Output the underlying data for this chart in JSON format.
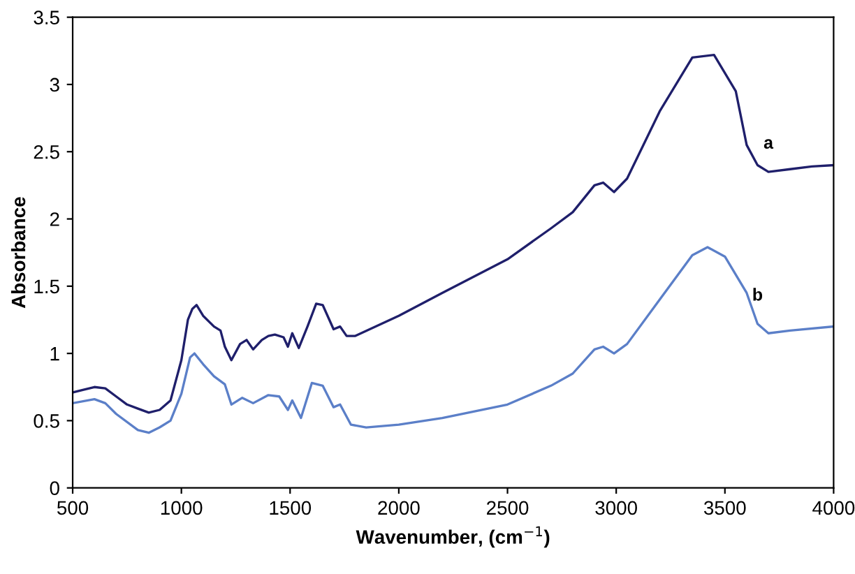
{
  "chart_data": {
    "type": "line",
    "xlabel": "Wavenumber, (cm$^{−1}$)",
    "ylabel": "Absorbance",
    "xlim": [
      500,
      4000
    ],
    "xticks": [
      500,
      1000,
      1500,
      2000,
      2500,
      3000,
      3500,
      4000
    ],
    "ylim": [
      0,
      3.5
    ],
    "yticks": [
      0,
      0.5,
      1,
      1.5,
      2,
      2.5,
      3,
      3.5
    ],
    "grid": false,
    "legend": false,
    "marker": "none",
    "line_style": "solid",
    "series": [
      {
        "name": "a",
        "color": "#1f1f6b",
        "x": [
          500,
          550,
          600,
          650,
          700,
          750,
          800,
          850,
          900,
          950,
          1000,
          1030,
          1050,
          1070,
          1100,
          1150,
          1180,
          1200,
          1230,
          1270,
          1300,
          1330,
          1370,
          1400,
          1430,
          1470,
          1490,
          1510,
          1540,
          1580,
          1620,
          1650,
          1700,
          1730,
          1760,
          1800,
          2000,
          2200,
          2500,
          2700,
          2800,
          2900,
          2940,
          2990,
          3050,
          3200,
          3350,
          3450,
          3550,
          3600,
          3650,
          3700,
          3800,
          3900,
          4000
        ],
        "values": [
          0.71,
          0.73,
          0.75,
          0.74,
          0.68,
          0.62,
          0.59,
          0.56,
          0.58,
          0.65,
          0.95,
          1.25,
          1.33,
          1.36,
          1.28,
          1.2,
          1.17,
          1.05,
          0.95,
          1.07,
          1.1,
          1.03,
          1.1,
          1.13,
          1.14,
          1.12,
          1.05,
          1.15,
          1.04,
          1.2,
          1.37,
          1.36,
          1.18,
          1.2,
          1.13,
          1.13,
          1.28,
          1.45,
          1.7,
          1.93,
          2.05,
          2.25,
          2.27,
          2.2,
          2.3,
          2.8,
          3.2,
          3.22,
          2.95,
          2.55,
          2.4,
          2.35,
          2.37,
          2.39,
          2.4
        ]
      },
      {
        "name": "b",
        "color": "#5b7fc8",
        "x": [
          500,
          600,
          650,
          700,
          800,
          850,
          900,
          950,
          1000,
          1040,
          1060,
          1100,
          1150,
          1200,
          1230,
          1280,
          1330,
          1400,
          1450,
          1490,
          1510,
          1550,
          1600,
          1650,
          1700,
          1730,
          1780,
          1850,
          2000,
          2200,
          2500,
          2700,
          2800,
          2900,
          2940,
          2990,
          3050,
          3200,
          3350,
          3420,
          3500,
          3600,
          3650,
          3700,
          3800,
          4000
        ],
        "values": [
          0.63,
          0.66,
          0.63,
          0.55,
          0.43,
          0.41,
          0.45,
          0.5,
          0.7,
          0.97,
          1.0,
          0.92,
          0.83,
          0.77,
          0.62,
          0.67,
          0.63,
          0.69,
          0.68,
          0.58,
          0.65,
          0.52,
          0.78,
          0.76,
          0.6,
          0.62,
          0.47,
          0.45,
          0.47,
          0.52,
          0.62,
          0.76,
          0.85,
          1.03,
          1.05,
          1.0,
          1.07,
          1.4,
          1.73,
          1.79,
          1.72,
          1.45,
          1.22,
          1.15,
          1.17,
          1.2
        ]
      }
    ]
  }
}
